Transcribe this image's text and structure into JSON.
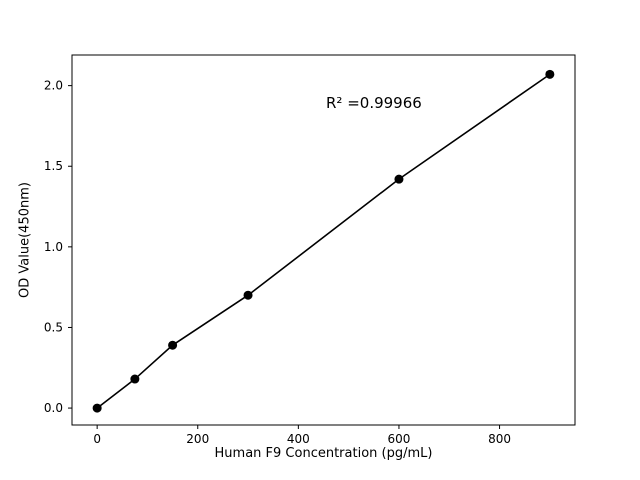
{
  "chart_data": {
    "type": "scatter",
    "x": [
      0,
      75,
      150,
      300,
      600,
      900
    ],
    "y": [
      0.0,
      0.18,
      0.39,
      0.7,
      1.42,
      2.07
    ],
    "title": "",
    "xlabel": "Human F9 Concentration (pg/mL)",
    "ylabel": "OD Value(450nm)",
    "annotation": {
      "text": "R² =0.99966",
      "x": 455,
      "y": 1.95
    },
    "xlim": [
      -50,
      950
    ],
    "ylim": [
      -0.105,
      2.19
    ],
    "xticks": [
      0,
      200,
      400,
      600,
      800
    ],
    "xtick_labels": [
      "0",
      "200",
      "400",
      "600",
      "800"
    ],
    "yticks": [
      0,
      0.5,
      1,
      1.5,
      2
    ],
    "ytick_labels": [
      "0.0",
      "0.5",
      "1.0",
      "1.5",
      "2.0"
    ],
    "grid": false,
    "legend": null,
    "line": true,
    "line_color": "#000000",
    "marker": "circle",
    "marker_color": "#000000",
    "background": "#ffffff"
  }
}
